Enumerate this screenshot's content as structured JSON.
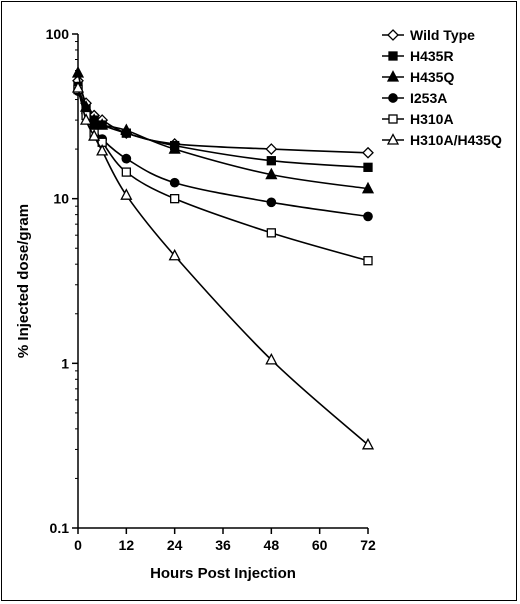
{
  "chart_data": {
    "type": "line",
    "title": "",
    "xlabel": "Hours Post  Injection",
    "ylabel": "% Injected dose/gram",
    "x_scale": "linear",
    "y_scale": "log",
    "xlim": [
      0,
      72
    ],
    "ylim": [
      0.1,
      100
    ],
    "x_ticks": [
      "0",
      "12",
      "24",
      "36",
      "48",
      "60",
      "72"
    ],
    "y_ticks": [
      "0.1",
      "1",
      "10",
      "100"
    ],
    "grid": false,
    "legend_position": "top-right",
    "series": [
      {
        "name": "Wild Type",
        "marker": "diamond-open",
        "x": [
          0,
          2,
          4,
          6,
          12,
          24,
          48,
          72
        ],
        "y": [
          52,
          38,
          32,
          30,
          25,
          21.5,
          20,
          19
        ]
      },
      {
        "name": "H435R",
        "marker": "square-filled",
        "x": [
          0,
          2,
          4,
          6,
          12,
          24,
          48,
          72
        ],
        "y": [
          48,
          35,
          30,
          28,
          25,
          21,
          17,
          15.5
        ]
      },
      {
        "name": "H435Q",
        "marker": "triangle-filled",
        "x": [
          0,
          2,
          4,
          6,
          12,
          24,
          48,
          72
        ],
        "y": [
          58,
          36,
          30,
          28,
          26,
          20,
          14,
          11.5
        ]
      },
      {
        "name": "I253A",
        "marker": "circle-filled",
        "x": [
          0,
          2,
          4,
          6,
          12,
          24,
          48,
          72
        ],
        "y": [
          45,
          33,
          27,
          23,
          17.5,
          12.5,
          9.5,
          7.8
        ]
      },
      {
        "name": "H310A",
        "marker": "square-open",
        "x": [
          0,
          2,
          4,
          6,
          12,
          24,
          48,
          72
        ],
        "y": [
          46,
          32,
          25,
          22,
          14.5,
          10,
          6.2,
          4.2
        ]
      },
      {
        "name": "H310A/H435Q",
        "marker": "triangle-open",
        "x": [
          0,
          2,
          4,
          6,
          12,
          24,
          48,
          72
        ],
        "y": [
          47,
          30,
          24,
          19.5,
          10.5,
          4.5,
          1.05,
          0.32
        ]
      }
    ]
  }
}
